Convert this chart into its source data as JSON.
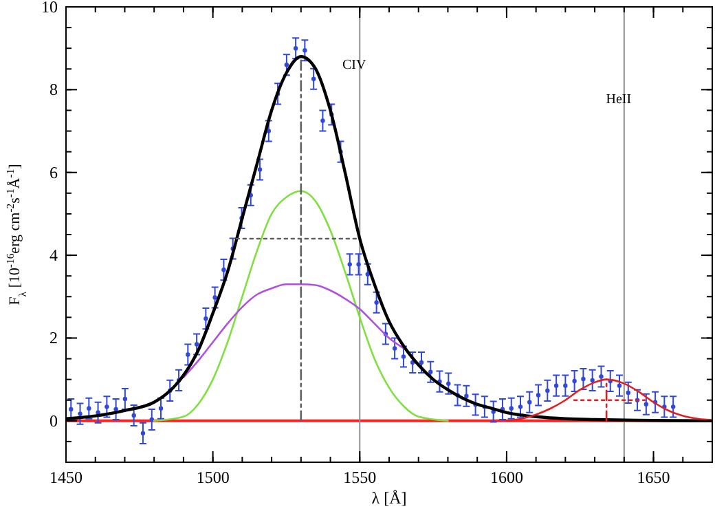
{
  "chart_data": {
    "type": "line",
    "xlabel": "λ [Å]",
    "ylabel": "F$_{λ}$ [10$^{-16}$erg cm$^{-2}$s$^{-1}$Å$^{-1}$]",
    "xlim": [
      1450,
      1670
    ],
    "xticks": [
      1450,
      1500,
      1550,
      1600,
      1650
    ],
    "ylim": [
      -1,
      10
    ],
    "yticks": [
      0,
      2,
      4,
      6,
      8,
      10
    ],
    "grid": false,
    "ref_lines": [
      {
        "axis": "y",
        "value": 0,
        "color": "#ff2020"
      },
      {
        "axis": "x",
        "value": 1550,
        "label": "CIV",
        "color": "#909090"
      },
      {
        "axis": "x",
        "value": 1640,
        "label": "HeII",
        "color": "#909090"
      }
    ],
    "series": [
      {
        "type": "scatter",
        "color": "#3048d8",
        "marker": "circle",
        "x": [
          1451.7,
          1454.8,
          1457.8,
          1460.9,
          1463.9,
          1467.0,
          1470.1,
          1473.1,
          1476.2,
          1479.2,
          1482.3,
          1485.4,
          1488.4,
          1491.5,
          1494.5,
          1497.6,
          1500.7,
          1503.7,
          1506.8,
          1509.8,
          1512.9,
          1516.0,
          1519.0,
          1522.1,
          1525.1,
          1528.2,
          1531.3,
          1534.3,
          1537.4,
          1540.4,
          1543.5,
          1546.6,
          1549.6,
          1552.7,
          1555.7,
          1558.8,
          1561.9,
          1564.9,
          1568.0,
          1571.0,
          1574.1,
          1577.2,
          1580.2,
          1583.3,
          1586.3,
          1589.4,
          1592.5,
          1595.5,
          1598.6,
          1601.6,
          1604.7,
          1607.8,
          1610.8,
          1613.9,
          1616.9,
          1620.0,
          1623.1,
          1626.1,
          1629.2,
          1632.2,
          1635.3,
          1638.4,
          1641.4,
          1644.5,
          1647.5,
          1650.6,
          1653.7,
          1656.7
        ],
        "values": [
          0.28,
          0.17,
          0.3,
          0.2,
          0.34,
          0.28,
          0.53,
          0.13,
          -0.3,
          0.03,
          0.3,
          0.73,
          0.98,
          1.6,
          1.85,
          2.47,
          2.98,
          3.65,
          4.16,
          4.9,
          5.45,
          6.07,
          7.0,
          7.9,
          8.6,
          9.0,
          8.95,
          8.26,
          7.25,
          7.4,
          6.5,
          3.78,
          3.78,
          3.54,
          2.86,
          2.1,
          1.75,
          1.55,
          1.41,
          1.41,
          1.18,
          0.95,
          0.9,
          0.62,
          0.6,
          0.39,
          0.34,
          0.22,
          0.28,
          0.3,
          0.34,
          0.45,
          0.62,
          0.73,
          0.85,
          0.85,
          0.96,
          1.01,
          0.98,
          1.07,
          0.96,
          0.85,
          0.68,
          0.5,
          0.4,
          0.45,
          0.34,
          0.34
        ],
        "errors": [
          0.25,
          0.25,
          0.25,
          0.25,
          0.25,
          0.25,
          0.25,
          0.25,
          0.25,
          0.25,
          0.25,
          0.25,
          0.25,
          0.25,
          0.25,
          0.25,
          0.25,
          0.25,
          0.25,
          0.25,
          0.25,
          0.25,
          0.25,
          0.25,
          0.25,
          0.25,
          0.25,
          0.25,
          0.25,
          0.25,
          0.25,
          0.25,
          0.25,
          0.25,
          0.25,
          0.25,
          0.25,
          0.25,
          0.25,
          0.25,
          0.25,
          0.25,
          0.25,
          0.25,
          0.25,
          0.25,
          0.25,
          0.25,
          0.25,
          0.25,
          0.25,
          0.25,
          0.25,
          0.25,
          0.25,
          0.25,
          0.25,
          0.25,
          0.25,
          0.25,
          0.25,
          0.25,
          0.25,
          0.25,
          0.25,
          0.25,
          0.25,
          0.25
        ]
      },
      {
        "color": "#80e040",
        "marker": "none",
        "line_style": "solid",
        "x": [
          1480,
          1490,
          1495,
          1500,
          1505,
          1510,
          1515,
          1520,
          1525,
          1530,
          1535,
          1540,
          1545,
          1550,
          1555,
          1560,
          1565,
          1570,
          1580
        ],
        "values": [
          0,
          0.1,
          0.4,
          1.0,
          1.9,
          3.0,
          4.1,
          5.0,
          5.4,
          5.55,
          5.3,
          4.6,
          3.6,
          2.5,
          1.5,
          0.8,
          0.35,
          0.1,
          0
        ]
      },
      {
        "color": "#b050e0",
        "marker": "none",
        "line_style": "solid",
        "x": [
          1490,
          1495,
          1500,
          1505,
          1510,
          1515,
          1520,
          1525,
          1530,
          1535,
          1540,
          1545,
          1550,
          1555,
          1560,
          1565
        ],
        "values": [
          1.05,
          1.45,
          1.9,
          2.35,
          2.75,
          3.05,
          3.2,
          3.3,
          3.3,
          3.28,
          3.15,
          2.95,
          2.7,
          2.35,
          2.0,
          1.75
        ]
      },
      {
        "color": "#000000",
        "marker": "none",
        "line_style": "solid",
        "x": [
          1450,
          1460,
          1470,
          1480,
          1485,
          1490,
          1495,
          1500,
          1505,
          1510,
          1515,
          1520,
          1525,
          1530,
          1535,
          1540,
          1545,
          1550,
          1555,
          1560,
          1565,
          1570,
          1575,
          1580,
          1585,
          1590,
          1595,
          1600,
          1605,
          1610,
          1620,
          1630,
          1650,
          1670
        ],
        "values": [
          0.05,
          0.12,
          0.25,
          0.45,
          0.7,
          1.1,
          1.7,
          2.6,
          3.6,
          4.9,
          6.2,
          7.5,
          8.4,
          8.8,
          8.5,
          7.5,
          6.0,
          4.4,
          3.3,
          2.4,
          1.8,
          1.35,
          1.0,
          0.75,
          0.55,
          0.4,
          0.3,
          0.2,
          0.14,
          0.1,
          0.05,
          0.03,
          0.01,
          0
        ]
      },
      {
        "type": "line",
        "color": "#e02020",
        "marker": "none",
        "line_style": "solid",
        "x": [
          1600,
          1605,
          1610,
          1615,
          1620,
          1625,
          1630,
          1634,
          1640,
          1645,
          1650,
          1655,
          1660,
          1665,
          1670
        ],
        "values": [
          0,
          0.05,
          0.15,
          0.3,
          0.5,
          0.75,
          0.93,
          1.0,
          0.9,
          0.7,
          0.45,
          0.25,
          0.12,
          0.05,
          0.02
        ]
      },
      {
        "type": "line",
        "color": "#606060",
        "marker": "none",
        "line_style": "dashed",
        "x": [
          1530,
          1530
        ],
        "values": [
          0,
          8.8
        ]
      },
      {
        "type": "line",
        "color": "#606060",
        "marker": "none",
        "line_style": "dotted",
        "x": [
          1508,
          1550
        ],
        "values": [
          4.4,
          4.4
        ]
      },
      {
        "type": "line",
        "color": "#e02020",
        "marker": "none",
        "line_style": "dashed",
        "x": [
          1634,
          1634
        ],
        "values": [
          0,
          1.0
        ]
      },
      {
        "type": "line",
        "color": "#e02020",
        "marker": "none",
        "line_style": "dotted",
        "x": [
          1623,
          1647
        ],
        "values": [
          0.5,
          0.5
        ]
      }
    ]
  }
}
